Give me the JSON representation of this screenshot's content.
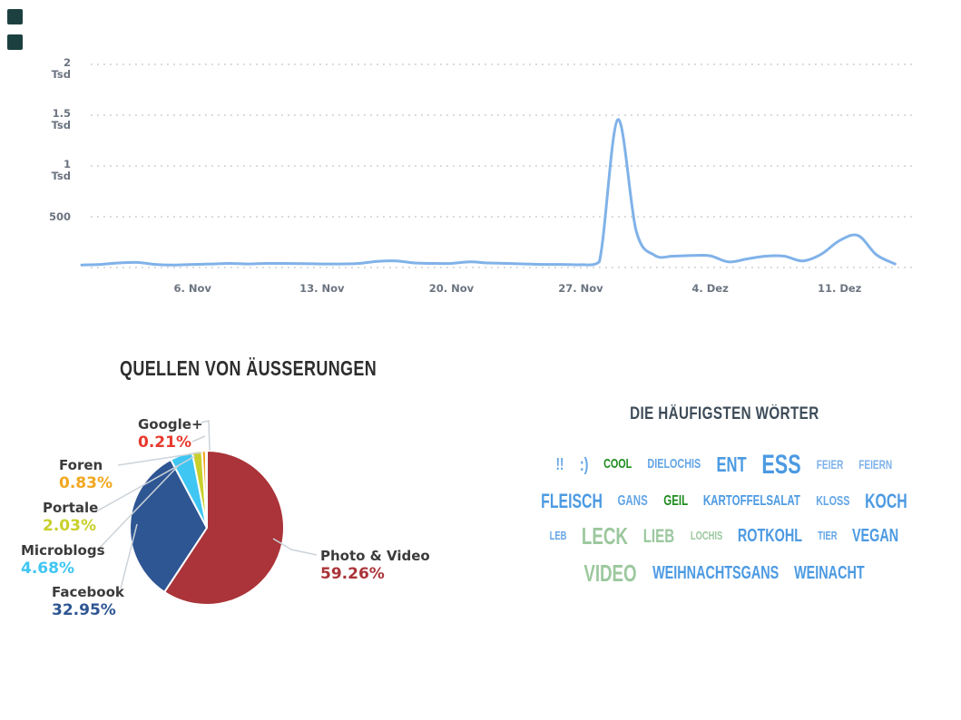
{
  "logo": {
    "shape": "two-stacked-squares",
    "color": "#1c4040"
  },
  "palette": {
    "blue": "#4c9ae2",
    "midblue": "#63a5e6",
    "lightblue": "#7db2ea",
    "green": "#1e8c1e",
    "sage": "#9cc89e",
    "axis_text": "#6b7480",
    "grid": "#c7cbd1",
    "line": "#80b2e9",
    "leader": "#ccd3d9"
  },
  "chart_data": [
    {
      "id": "mentions-timeline",
      "type": "line",
      "title": "",
      "ylim": [
        0,
        2150
      ],
      "grid": "dotted",
      "y_unit": "Tsd",
      "grid_values": [
        500,
        1000,
        1500,
        2000
      ],
      "y_tick_labels": [
        "500",
        "1 Tsd",
        "1.5 Tsd",
        "2 Tsd"
      ],
      "x_ticks": [
        {
          "day_index": 6,
          "label": "6. Nov"
        },
        {
          "day_index": 13,
          "label": "13. Nov"
        },
        {
          "day_index": 20,
          "label": "20. Nov"
        },
        {
          "day_index": 27,
          "label": "27. Nov"
        },
        {
          "day_index": 34,
          "label": "4. Dez"
        },
        {
          "day_index": 41,
          "label": "11. Dez"
        }
      ],
      "values": [
        25,
        30,
        45,
        50,
        30,
        25,
        30,
        35,
        40,
        35,
        40,
        40,
        38,
        35,
        35,
        40,
        60,
        65,
        45,
        40,
        40,
        55,
        45,
        40,
        35,
        30,
        30,
        28,
        55,
        1455,
        360,
        120,
        112,
        118,
        115,
        55,
        85,
        112,
        112,
        65,
        130,
        265,
        315,
        125,
        35
      ],
      "peak_value_tsd": 1.46,
      "legend": "none"
    },
    {
      "id": "sources-pie",
      "type": "pie",
      "title": "QUELLEN VON ÄUSSERUNGEN",
      "slices": [
        {
          "label": "Photo & Video",
          "pct_label": "59.26%",
          "value": 59.26,
          "color": "#aa3439"
        },
        {
          "label": "Facebook",
          "pct_label": "32.95%",
          "value": 32.95,
          "color": "#2e5693"
        },
        {
          "label": "Microblogs",
          "pct_label": "4.68%",
          "value": 4.68,
          "color": "#3fc6f2"
        },
        {
          "label": "Portale",
          "pct_label": "2.03%",
          "value": 2.03,
          "color": "#c9d02b"
        },
        {
          "label": "Foren",
          "pct_label": "0.83%",
          "value": 0.83,
          "color": "#f2a71f"
        },
        {
          "label": "Google+",
          "pct_label": "0.21%",
          "value": 0.21,
          "color": "#e8392e"
        }
      ]
    },
    {
      "id": "wordcloud",
      "type": "wordcloud",
      "title": "DIE HÄUFIGSTEN WÖRTER",
      "rows": [
        [
          {
            "text": "!!",
            "size": 18,
            "color": "midblue"
          },
          {
            "text": ":)",
            "size": 20,
            "color": "midblue"
          },
          {
            "text": "COOL",
            "size": 15,
            "color": "green"
          },
          {
            "text": "DIELOCHIS",
            "size": 15,
            "color": "midblue"
          },
          {
            "text": "ENT",
            "size": 23,
            "color": "blue"
          },
          {
            "text": "ESS",
            "size": 30,
            "color": "blue"
          },
          {
            "text": "FEIER",
            "size": 14,
            "color": "lightblue"
          },
          {
            "text": "FEIERN",
            "size": 14,
            "color": "lightblue"
          }
        ],
        [
          {
            "text": "FLEISCH",
            "size": 22,
            "color": "blue"
          },
          {
            "text": "GANS",
            "size": 16,
            "color": "midblue"
          },
          {
            "text": "GEIL",
            "size": 16,
            "color": "green"
          },
          {
            "text": "KARTOFFELSALAT",
            "size": 16,
            "color": "blue"
          },
          {
            "text": "KLOSS",
            "size": 15,
            "color": "midblue"
          },
          {
            "text": "KOCH",
            "size": 22,
            "color": "blue"
          }
        ],
        [
          {
            "text": "LEB",
            "size": 13,
            "color": "midblue"
          },
          {
            "text": "LECK",
            "size": 26,
            "color": "sage"
          },
          {
            "text": "LIEB",
            "size": 21,
            "color": "sage"
          },
          {
            "text": "LOCHIS",
            "size": 13,
            "color": "sage"
          },
          {
            "text": "ROTKOHL",
            "size": 20,
            "color": "blue"
          },
          {
            "text": "TIER",
            "size": 13,
            "color": "midblue"
          },
          {
            "text": "VEGAN",
            "size": 20,
            "color": "blue"
          }
        ],
        [
          {
            "text": "VIDEO",
            "size": 26,
            "color": "sage"
          },
          {
            "text": "WEIHNACHTSGANS",
            "size": 20,
            "color": "blue"
          },
          {
            "text": "WEINACHT",
            "size": 20,
            "color": "blue"
          }
        ]
      ]
    }
  ]
}
